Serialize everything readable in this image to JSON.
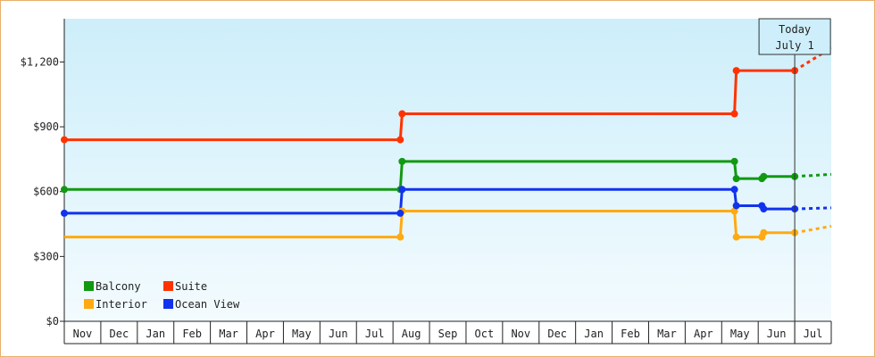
{
  "chart_data": {
    "type": "line",
    "step": true,
    "y_ticks": [
      "$0",
      "$300",
      "$600",
      "$900",
      "$1,200"
    ],
    "y_tick_values": [
      0,
      300,
      600,
      900,
      1200
    ],
    "ylim": [
      0,
      1400
    ],
    "grid": false,
    "x_ticks": [
      "Nov",
      "Dec",
      "Jan",
      "Feb",
      "Mar",
      "Apr",
      "May",
      "Jun",
      "Jul",
      "Aug",
      "Sep",
      "Oct",
      "Nov",
      "Dec",
      "Jan",
      "Feb",
      "Mar",
      "Apr",
      "May",
      "Jun",
      "Jul"
    ],
    "xlim": [
      0,
      21
    ],
    "today": {
      "line1": "Today",
      "line2": "July 1",
      "x": 20.0
    },
    "legend_position": "bottom-left",
    "series": [
      {
        "name": "Balcony",
        "color": "#119911",
        "points": [
          [
            0,
            610
          ],
          [
            9.2,
            610
          ],
          [
            9.25,
            740
          ],
          [
            18.35,
            740
          ],
          [
            18.4,
            660
          ],
          [
            19.1,
            660
          ],
          [
            19.15,
            670
          ],
          [
            20.0,
            670
          ]
        ],
        "projection": [
          [
            20.0,
            670
          ],
          [
            21.0,
            680
          ]
        ]
      },
      {
        "name": "Suite",
        "color": "#ff3300",
        "points": [
          [
            0,
            840
          ],
          [
            9.2,
            840
          ],
          [
            9.25,
            960
          ],
          [
            18.35,
            960
          ],
          [
            18.4,
            1160
          ],
          [
            20.0,
            1160
          ]
        ],
        "projection": [
          [
            20.0,
            1160
          ],
          [
            21.0,
            1265
          ]
        ]
      },
      {
        "name": "Interior",
        "color": "#ffaa11",
        "points": [
          [
            0,
            390
          ],
          [
            9.2,
            390
          ],
          [
            9.25,
            510
          ],
          [
            18.35,
            510
          ],
          [
            18.4,
            390
          ],
          [
            19.1,
            390
          ],
          [
            19.15,
            410
          ],
          [
            20.0,
            410
          ]
        ],
        "projection": [
          [
            20.0,
            410
          ],
          [
            21.0,
            440
          ]
        ]
      },
      {
        "name": "Ocean View",
        "color": "#1133ee",
        "points": [
          [
            0,
            500
          ],
          [
            9.2,
            500
          ],
          [
            9.25,
            610
          ],
          [
            18.35,
            610
          ],
          [
            18.4,
            535
          ],
          [
            19.1,
            535
          ],
          [
            19.15,
            520
          ],
          [
            20.0,
            520
          ]
        ],
        "projection": [
          [
            20.0,
            520
          ],
          [
            21.0,
            525
          ]
        ]
      }
    ],
    "markers": [
      {
        "series": 0,
        "x": [
          0,
          9.2,
          9.25,
          18.35,
          18.4,
          19.1,
          19.15,
          20.0
        ]
      },
      {
        "series": 1,
        "x": [
          0,
          9.2,
          9.25,
          18.35,
          18.4,
          20.0
        ]
      },
      {
        "series": 2,
        "x": [
          9.2,
          9.25,
          18.35,
          18.4,
          19.1,
          19.15,
          20.0
        ]
      },
      {
        "series": 3,
        "x": [
          0,
          9.2,
          9.25,
          18.35,
          18.4,
          19.1,
          19.15,
          20.0
        ]
      }
    ],
    "legend": [
      {
        "label": "Balcony",
        "color": "#119911"
      },
      {
        "label": "Suite",
        "color": "#ff3300"
      },
      {
        "label": "Interior",
        "color": "#ffaa11"
      },
      {
        "label": "Ocean View",
        "color": "#1133ee"
      }
    ]
  }
}
